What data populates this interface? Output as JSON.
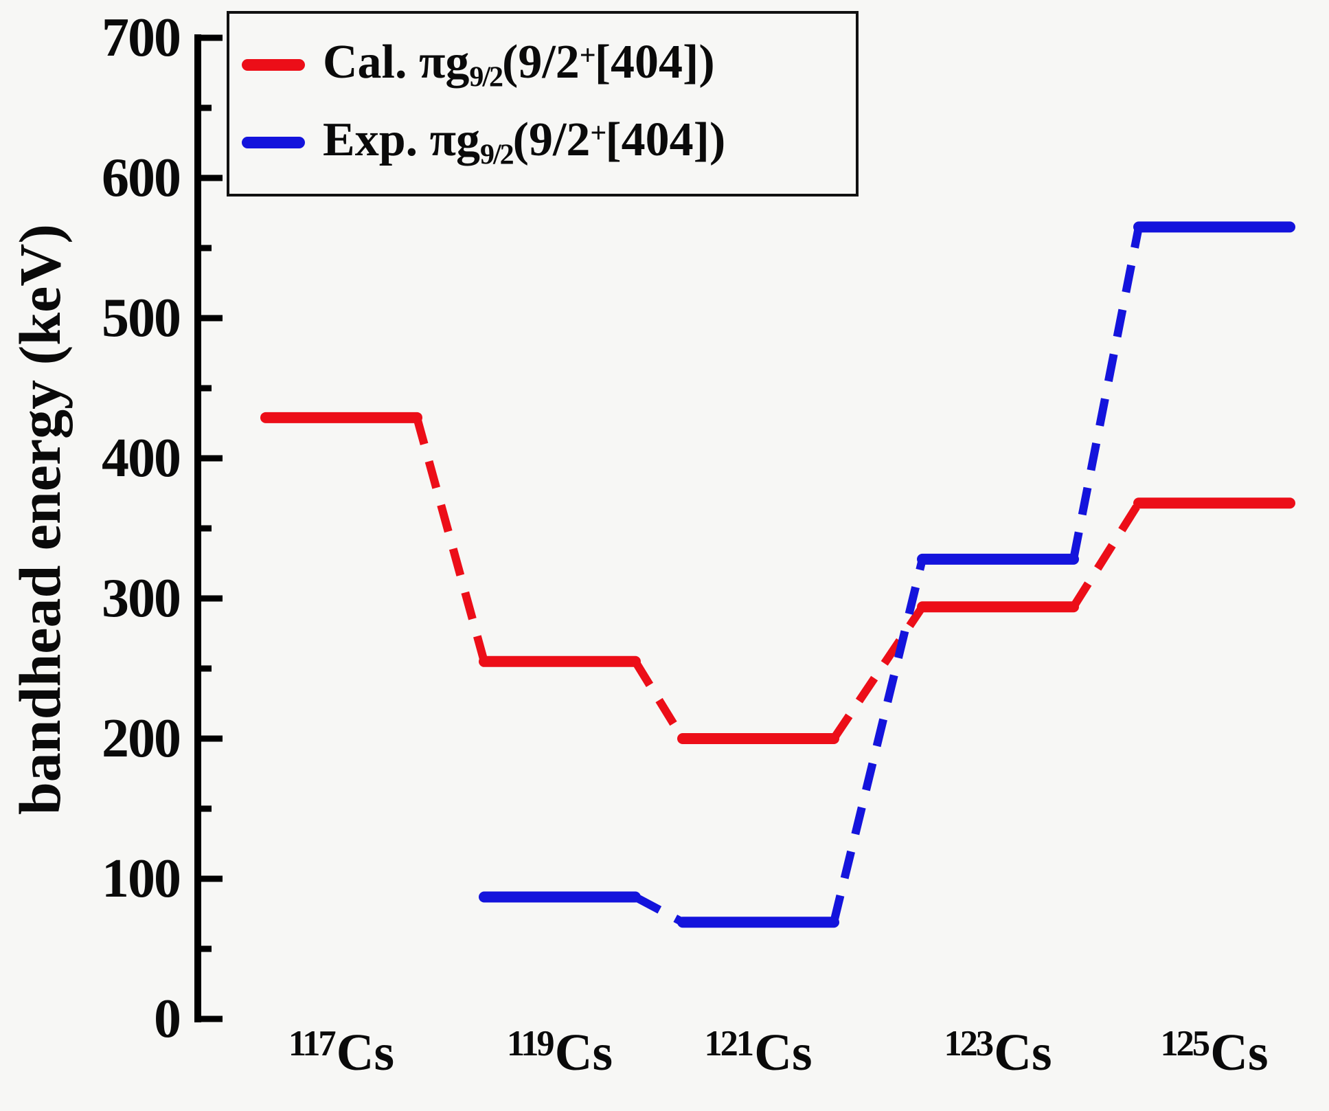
{
  "figure": {
    "bg": "#f7f7f5",
    "axis_color": "#000000"
  },
  "y_axis": {
    "title": "bandhead energy (keV)",
    "min": 0,
    "max": 700,
    "major_step": 100,
    "minor_step": 50,
    "tick_labels": [
      "0",
      "100",
      "200",
      "300",
      "400",
      "500",
      "600",
      "700"
    ]
  },
  "x_axis": {
    "categories": [
      {
        "label": "117Cs",
        "parts": [
          {
            "t": "sup",
            "v": "117"
          },
          {
            "t": "text",
            "v": "Cs"
          }
        ]
      },
      {
        "label": "119Cs",
        "parts": [
          {
            "t": "sup",
            "v": "119"
          },
          {
            "t": "text",
            "v": "Cs"
          }
        ]
      },
      {
        "label": "121Cs",
        "parts": [
          {
            "t": "sup",
            "v": "121"
          },
          {
            "t": "text",
            "v": "Cs"
          }
        ]
      },
      {
        "label": "123Cs",
        "parts": [
          {
            "t": "sup",
            "v": "123"
          },
          {
            "t": "text",
            "v": "Cs"
          }
        ]
      },
      {
        "label": "125Cs",
        "parts": [
          {
            "t": "sup",
            "v": "125"
          },
          {
            "t": "text",
            "v": "Cs"
          }
        ]
      }
    ]
  },
  "legend": {
    "entries": [
      {
        "id": "cal",
        "color": "#ec0e18",
        "label": "Cal. πg9/2(9/2+[404])",
        "parts": [
          {
            "t": "text",
            "v": "Cal. πg"
          },
          {
            "t": "sub",
            "v": "9/2"
          },
          {
            "t": "text",
            "v": "(9/2"
          },
          {
            "t": "sup",
            "v": "+"
          },
          {
            "t": "text",
            "v": "[404])"
          }
        ]
      },
      {
        "id": "exp",
        "color": "#1414dc",
        "label": "Exp. πg9/2(9/2+[404])",
        "parts": [
          {
            "t": "text",
            "v": "Exp. πg"
          },
          {
            "t": "sub",
            "v": "9/2"
          },
          {
            "t": "text",
            "v": "(9/2"
          },
          {
            "t": "sup",
            "v": "+"
          },
          {
            "t": "text",
            "v": "[404])"
          }
        ]
      }
    ]
  },
  "chart_data": {
    "type": "line",
    "subtype": "energy-level-diagram",
    "categories": [
      "117Cs",
      "119Cs",
      "121Cs",
      "123Cs",
      "125Cs"
    ],
    "series": [
      {
        "name": "Cal. πg9/2(9/2+[404])",
        "color": "#ec0e18",
        "values": [
          429,
          255,
          200,
          294,
          368
        ]
      },
      {
        "name": "Exp. πg9/2(9/2+[404])",
        "color": "#1414dc",
        "values": [
          null,
          87,
          69,
          328,
          565
        ]
      }
    ],
    "title": "",
    "xlabel": "",
    "ylabel": "bandhead energy (keV)",
    "ylim": [
      0,
      700
    ],
    "grid": false,
    "legend_position": "upper left",
    "connector_style": "dashed",
    "level_style": "thick horizontal segments centered on each isotope"
  }
}
